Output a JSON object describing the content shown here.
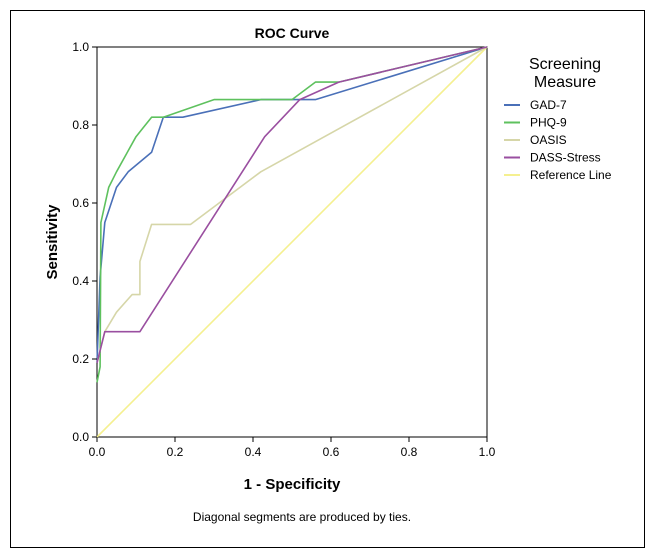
{
  "chart_data": {
    "type": "line",
    "title": "ROC Curve",
    "xlabel": "1 - Specificity",
    "ylabel": "Sensitivity",
    "xlim": [
      0,
      1
    ],
    "ylim": [
      0,
      1
    ],
    "x_ticks": [
      "0.0",
      "0.2",
      "0.4",
      "0.6",
      "0.8",
      "1.0"
    ],
    "y_ticks": [
      "0.0",
      "0.2",
      "0.4",
      "0.6",
      "0.8",
      "1.0"
    ],
    "grid": false,
    "legend": {
      "title_line1": "Screening",
      "title_line2": "Measure",
      "placement": "right"
    },
    "footnote": "Diagonal segments are produced by ties.",
    "series": [
      {
        "name": "GAD-7",
        "color": "#4a70b8",
        "points": [
          [
            0,
            0.19
          ],
          [
            0.008,
            0.41
          ],
          [
            0.02,
            0.55
          ],
          [
            0.05,
            0.64
          ],
          [
            0.08,
            0.68
          ],
          [
            0.14,
            0.73
          ],
          [
            0.17,
            0.82
          ],
          [
            0.22,
            0.82
          ],
          [
            0.42,
            0.865
          ],
          [
            0.56,
            0.865
          ],
          [
            1,
            1
          ]
        ]
      },
      {
        "name": "PHQ-9",
        "color": "#5ec15e",
        "points": [
          [
            0,
            0.14
          ],
          [
            0.008,
            0.18
          ],
          [
            0.01,
            0.55
          ],
          [
            0.03,
            0.64
          ],
          [
            0.05,
            0.68
          ],
          [
            0.1,
            0.77
          ],
          [
            0.14,
            0.82
          ],
          [
            0.17,
            0.82
          ],
          [
            0.3,
            0.865
          ],
          [
            0.5,
            0.865
          ],
          [
            0.56,
            0.91
          ],
          [
            0.62,
            0.91
          ],
          [
            1,
            1
          ]
        ]
      },
      {
        "name": "OASIS",
        "color": "#d6d6a8",
        "points": [
          [
            0,
            0.19
          ],
          [
            0.02,
            0.27
          ],
          [
            0.05,
            0.32
          ],
          [
            0.09,
            0.365
          ],
          [
            0.11,
            0.365
          ],
          [
            0.11,
            0.45
          ],
          [
            0.14,
            0.545
          ],
          [
            0.24,
            0.545
          ],
          [
            0.42,
            0.68
          ],
          [
            1,
            1
          ]
        ]
      },
      {
        "name": "DASS-Stress",
        "color": "#9a4fa0",
        "points": [
          [
            0,
            0.19
          ],
          [
            0.02,
            0.27
          ],
          [
            0.11,
            0.27
          ],
          [
            0.43,
            0.77
          ],
          [
            0.52,
            0.865
          ],
          [
            0.62,
            0.91
          ],
          [
            1,
            1
          ]
        ]
      },
      {
        "name": "Reference Line",
        "color": "#f5f090",
        "points": [
          [
            0,
            0
          ],
          [
            1,
            1
          ]
        ]
      }
    ]
  }
}
